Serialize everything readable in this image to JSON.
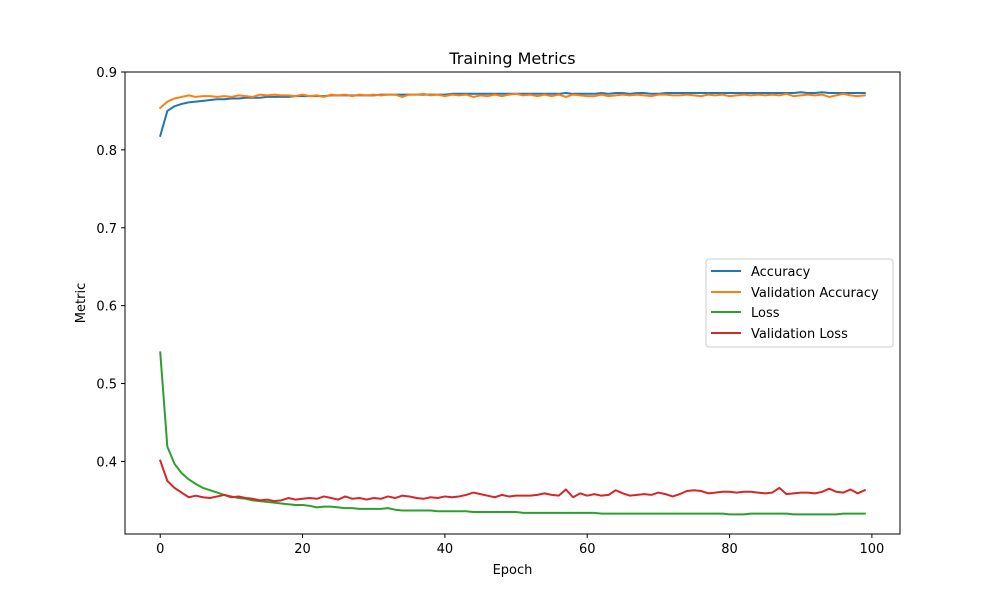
{
  "chart_data": {
    "type": "line",
    "title": "Training Metrics",
    "xlabel": "Epoch",
    "ylabel": "Metric",
    "xlim": [
      -4.95,
      103.95
    ],
    "ylim": [
      0.3068,
      0.9
    ],
    "xticks": [
      0,
      20,
      40,
      60,
      80,
      100
    ],
    "yticks": [
      0.4,
      0.5,
      0.6,
      0.7,
      0.8,
      0.9
    ],
    "xtick_labels": [
      "0",
      "20",
      "40",
      "60",
      "80",
      "100"
    ],
    "ytick_labels": [
      "0.4",
      "0.5",
      "0.6",
      "0.7",
      "0.8",
      "0.9"
    ],
    "grid": false,
    "legend": {
      "position": "center-right",
      "entries": [
        "Accuracy",
        "Validation Accuracy",
        "Loss",
        "Validation Loss"
      ]
    },
    "series": [
      {
        "name": "Accuracy",
        "color": "#1f77b4",
        "x": [
          0,
          1,
          2,
          3,
          4,
          5,
          6,
          7,
          8,
          9,
          10,
          11,
          12,
          13,
          14,
          15,
          16,
          17,
          18,
          19,
          20,
          21,
          22,
          23,
          24,
          25,
          26,
          27,
          28,
          29,
          30,
          31,
          32,
          33,
          34,
          35,
          36,
          37,
          38,
          39,
          40,
          41,
          42,
          43,
          44,
          45,
          46,
          47,
          48,
          49,
          50,
          51,
          52,
          53,
          54,
          55,
          56,
          57,
          58,
          59,
          60,
          61,
          62,
          63,
          64,
          65,
          66,
          67,
          68,
          69,
          70,
          71,
          72,
          73,
          74,
          75,
          76,
          77,
          78,
          79,
          80,
          81,
          82,
          83,
          84,
          85,
          86,
          87,
          88,
          89,
          90,
          91,
          92,
          93,
          94,
          95,
          96,
          97,
          98,
          99
        ],
        "values": [
          0.818,
          0.85,
          0.856,
          0.859,
          0.861,
          0.862,
          0.863,
          0.864,
          0.865,
          0.865,
          0.866,
          0.866,
          0.867,
          0.867,
          0.867,
          0.868,
          0.868,
          0.868,
          0.868,
          0.869,
          0.869,
          0.869,
          0.869,
          0.869,
          0.87,
          0.87,
          0.87,
          0.87,
          0.87,
          0.87,
          0.87,
          0.871,
          0.871,
          0.871,
          0.871,
          0.871,
          0.871,
          0.871,
          0.871,
          0.871,
          0.871,
          0.872,
          0.872,
          0.872,
          0.872,
          0.872,
          0.872,
          0.872,
          0.872,
          0.872,
          0.872,
          0.872,
          0.872,
          0.872,
          0.872,
          0.872,
          0.872,
          0.873,
          0.872,
          0.872,
          0.872,
          0.872,
          0.873,
          0.872,
          0.873,
          0.873,
          0.872,
          0.873,
          0.873,
          0.872,
          0.872,
          0.873,
          0.873,
          0.873,
          0.873,
          0.873,
          0.873,
          0.873,
          0.873,
          0.873,
          0.873,
          0.873,
          0.873,
          0.873,
          0.873,
          0.873,
          0.873,
          0.873,
          0.873,
          0.873,
          0.874,
          0.873,
          0.873,
          0.874,
          0.873,
          0.873,
          0.873,
          0.873,
          0.873,
          0.873
        ]
      },
      {
        "name": "Validation Accuracy",
        "color": "#ff7f0e",
        "x": [
          0,
          1,
          2,
          3,
          4,
          5,
          6,
          7,
          8,
          9,
          10,
          11,
          12,
          13,
          14,
          15,
          16,
          17,
          18,
          19,
          20,
          21,
          22,
          23,
          24,
          25,
          26,
          27,
          28,
          29,
          30,
          31,
          32,
          33,
          34,
          35,
          36,
          37,
          38,
          39,
          40,
          41,
          42,
          43,
          44,
          45,
          46,
          47,
          48,
          49,
          50,
          51,
          52,
          53,
          54,
          55,
          56,
          57,
          58,
          59,
          60,
          61,
          62,
          63,
          64,
          65,
          66,
          67,
          68,
          69,
          70,
          71,
          72,
          73,
          74,
          75,
          76,
          77,
          78,
          79,
          80,
          81,
          82,
          83,
          84,
          85,
          86,
          87,
          88,
          89,
          90,
          91,
          92,
          93,
          94,
          95,
          96,
          97,
          98,
          99
        ],
        "values": [
          0.854,
          0.862,
          0.866,
          0.868,
          0.87,
          0.868,
          0.869,
          0.869,
          0.868,
          0.869,
          0.868,
          0.87,
          0.869,
          0.868,
          0.871,
          0.87,
          0.871,
          0.87,
          0.87,
          0.869,
          0.871,
          0.869,
          0.87,
          0.868,
          0.871,
          0.87,
          0.871,
          0.869,
          0.871,
          0.87,
          0.871,
          0.87,
          0.871,
          0.871,
          0.868,
          0.871,
          0.871,
          0.872,
          0.87,
          0.871,
          0.869,
          0.871,
          0.87,
          0.871,
          0.868,
          0.87,
          0.869,
          0.871,
          0.869,
          0.871,
          0.872,
          0.87,
          0.871,
          0.869,
          0.871,
          0.869,
          0.871,
          0.868,
          0.871,
          0.87,
          0.869,
          0.869,
          0.871,
          0.869,
          0.87,
          0.871,
          0.87,
          0.871,
          0.87,
          0.869,
          0.871,
          0.871,
          0.87,
          0.87,
          0.871,
          0.87,
          0.869,
          0.871,
          0.87,
          0.871,
          0.869,
          0.87,
          0.871,
          0.87,
          0.871,
          0.87,
          0.871,
          0.87,
          0.872,
          0.869,
          0.87,
          0.871,
          0.87,
          0.871,
          0.868,
          0.87,
          0.872,
          0.87,
          0.869,
          0.87
        ]
      },
      {
        "name": "Loss",
        "color": "#2ca02c",
        "x": [
          0,
          1,
          2,
          3,
          4,
          5,
          6,
          7,
          8,
          9,
          10,
          11,
          12,
          13,
          14,
          15,
          16,
          17,
          18,
          19,
          20,
          21,
          22,
          23,
          24,
          25,
          26,
          27,
          28,
          29,
          30,
          31,
          32,
          33,
          34,
          35,
          36,
          37,
          38,
          39,
          40,
          41,
          42,
          43,
          44,
          45,
          46,
          47,
          48,
          49,
          50,
          51,
          52,
          53,
          54,
          55,
          56,
          57,
          58,
          59,
          60,
          61,
          62,
          63,
          64,
          65,
          66,
          67,
          68,
          69,
          70,
          71,
          72,
          73,
          74,
          75,
          76,
          77,
          78,
          79,
          80,
          81,
          82,
          83,
          84,
          85,
          86,
          87,
          88,
          89,
          90,
          91,
          92,
          93,
          94,
          95,
          96,
          97,
          98,
          99
        ],
        "values": [
          0.54,
          0.419,
          0.397,
          0.385,
          0.377,
          0.371,
          0.366,
          0.363,
          0.36,
          0.357,
          0.355,
          0.353,
          0.352,
          0.35,
          0.349,
          0.348,
          0.347,
          0.346,
          0.345,
          0.344,
          0.344,
          0.343,
          0.341,
          0.342,
          0.342,
          0.341,
          0.34,
          0.34,
          0.339,
          0.339,
          0.339,
          0.339,
          0.34,
          0.338,
          0.337,
          0.337,
          0.337,
          0.337,
          0.337,
          0.336,
          0.336,
          0.336,
          0.336,
          0.336,
          0.335,
          0.335,
          0.335,
          0.335,
          0.335,
          0.335,
          0.335,
          0.334,
          0.334,
          0.334,
          0.334,
          0.334,
          0.334,
          0.334,
          0.334,
          0.334,
          0.334,
          0.334,
          0.333,
          0.333,
          0.333,
          0.333,
          0.333,
          0.333,
          0.333,
          0.333,
          0.333,
          0.333,
          0.333,
          0.333,
          0.333,
          0.333,
          0.333,
          0.333,
          0.333,
          0.333,
          0.332,
          0.332,
          0.332,
          0.333,
          0.333,
          0.333,
          0.333,
          0.333,
          0.333,
          0.332,
          0.332,
          0.332,
          0.332,
          0.332,
          0.332,
          0.332,
          0.333,
          0.333,
          0.333,
          0.333
        ]
      },
      {
        "name": "Validation Loss",
        "color": "#d62728",
        "x": [
          0,
          1,
          2,
          3,
          4,
          5,
          6,
          7,
          8,
          9,
          10,
          11,
          12,
          13,
          14,
          15,
          16,
          17,
          18,
          19,
          20,
          21,
          22,
          23,
          24,
          25,
          26,
          27,
          28,
          29,
          30,
          31,
          32,
          33,
          34,
          35,
          36,
          37,
          38,
          39,
          40,
          41,
          42,
          43,
          44,
          45,
          46,
          47,
          48,
          49,
          50,
          51,
          52,
          53,
          54,
          55,
          56,
          57,
          58,
          59,
          60,
          61,
          62,
          63,
          64,
          65,
          66,
          67,
          68,
          69,
          70,
          71,
          72,
          73,
          74,
          75,
          76,
          77,
          78,
          79,
          80,
          81,
          82,
          83,
          84,
          85,
          86,
          87,
          88,
          89,
          90,
          91,
          92,
          93,
          94,
          95,
          96,
          97,
          98,
          99
        ],
        "values": [
          0.401,
          0.375,
          0.366,
          0.36,
          0.354,
          0.356,
          0.354,
          0.353,
          0.355,
          0.357,
          0.354,
          0.355,
          0.353,
          0.352,
          0.35,
          0.351,
          0.349,
          0.35,
          0.353,
          0.351,
          0.352,
          0.353,
          0.352,
          0.355,
          0.353,
          0.351,
          0.355,
          0.352,
          0.353,
          0.351,
          0.353,
          0.352,
          0.355,
          0.353,
          0.356,
          0.355,
          0.353,
          0.352,
          0.354,
          0.353,
          0.355,
          0.354,
          0.355,
          0.357,
          0.36,
          0.358,
          0.356,
          0.354,
          0.357,
          0.355,
          0.356,
          0.356,
          0.356,
          0.357,
          0.359,
          0.357,
          0.356,
          0.364,
          0.354,
          0.359,
          0.356,
          0.358,
          0.356,
          0.357,
          0.363,
          0.359,
          0.356,
          0.357,
          0.358,
          0.357,
          0.36,
          0.358,
          0.355,
          0.358,
          0.362,
          0.363,
          0.362,
          0.359,
          0.36,
          0.361,
          0.361,
          0.36,
          0.361,
          0.361,
          0.36,
          0.359,
          0.36,
          0.366,
          0.358,
          0.359,
          0.36,
          0.36,
          0.359,
          0.361,
          0.365,
          0.361,
          0.36,
          0.364,
          0.359,
          0.363
        ]
      }
    ]
  }
}
